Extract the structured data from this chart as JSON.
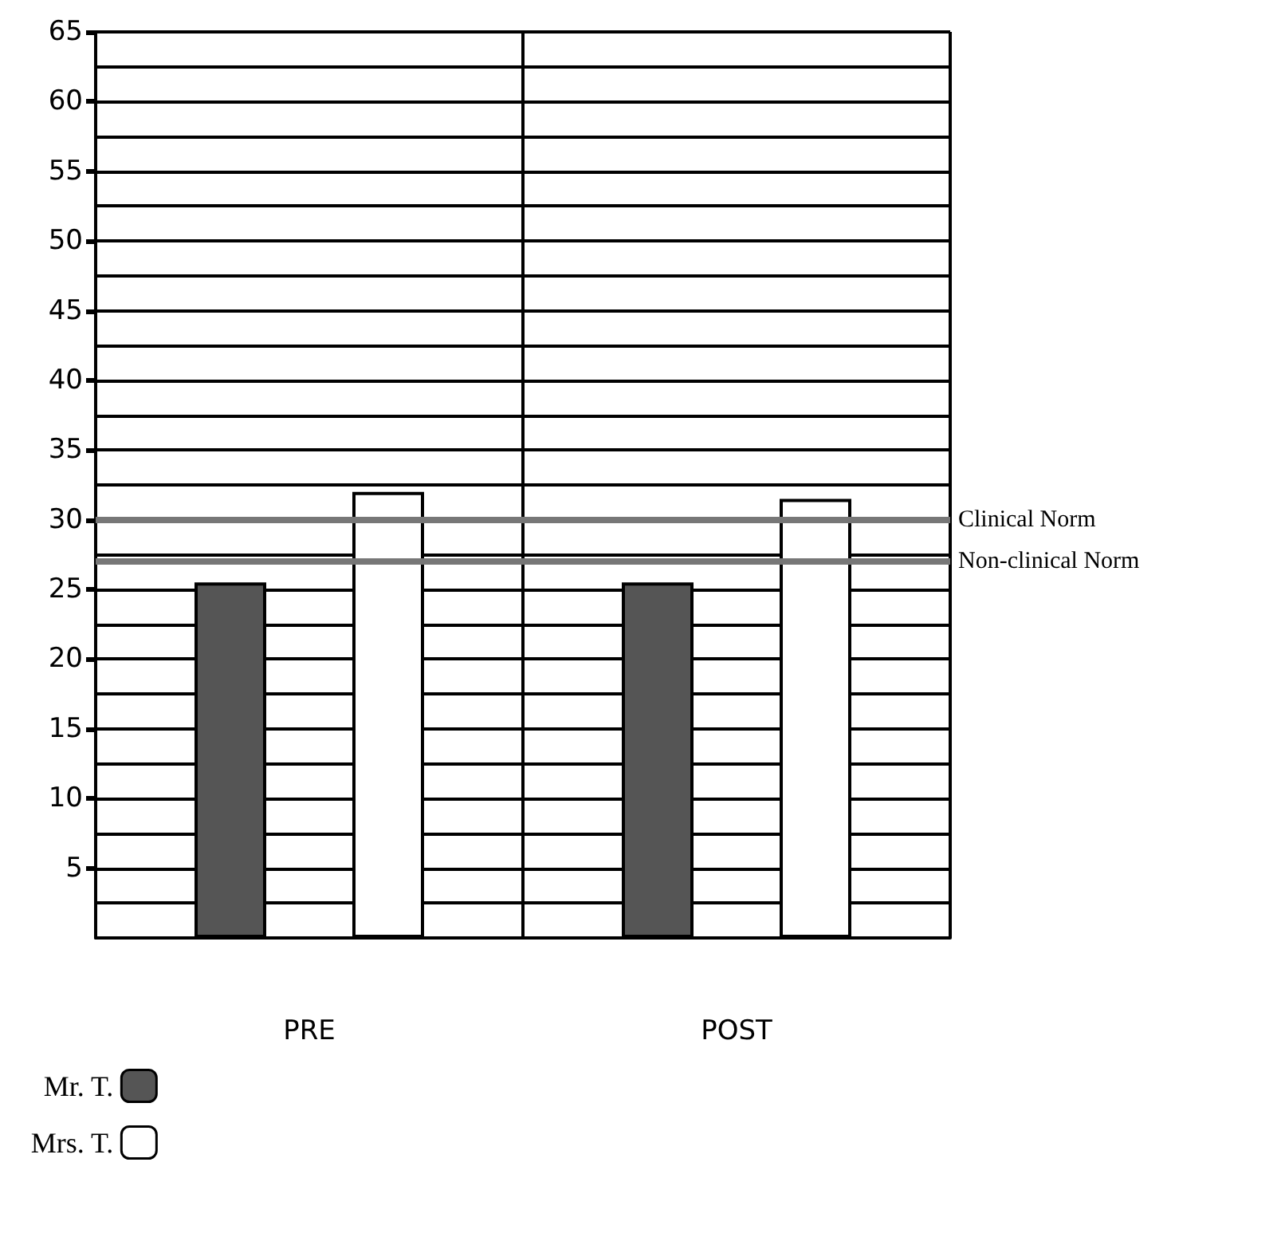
{
  "chart_data": {
    "type": "bar",
    "categories": [
      "PRE",
      "POST"
    ],
    "series": [
      {
        "name": "Mr. T.",
        "color": "#555555",
        "values": [
          25.5,
          25.5
        ]
      },
      {
        "name": "Mrs. T.",
        "color": "#ffffff",
        "values": [
          32,
          31.5
        ]
      }
    ],
    "ylim": [
      0,
      65
    ],
    "yticks": [
      5,
      10,
      15,
      20,
      25,
      30,
      35,
      40,
      45,
      50,
      55,
      60,
      65
    ],
    "ref_lines": [
      {
        "axis": "y",
        "value": 30,
        "label": "Clinical Norm",
        "color": "#777777"
      },
      {
        "axis": "y",
        "value": 27,
        "label": "Non-clinical Norm",
        "color": "#777777"
      }
    ],
    "grid": true,
    "legend": "bottom left"
  }
}
